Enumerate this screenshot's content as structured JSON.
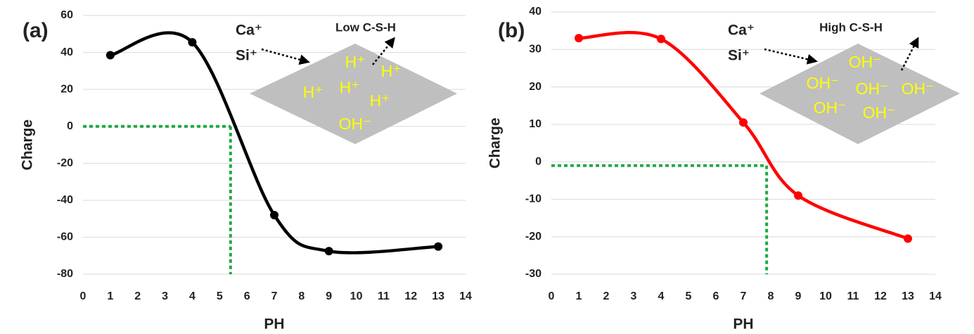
{
  "chart_data": [
    {
      "type": "line",
      "panel_label": "(a)",
      "xlabel": "PH",
      "ylabel": "Charge",
      "x": [
        1,
        4,
        7,
        9,
        13
      ],
      "values": [
        38.5,
        45.5,
        -48,
        -67.5,
        -65
      ],
      "color": "#000000",
      "xlim": [
        0,
        14
      ],
      "xticks": [
        0,
        1,
        2,
        3,
        4,
        5,
        6,
        7,
        8,
        9,
        10,
        11,
        12,
        13,
        14
      ],
      "ylim": [
        -80,
        60
      ],
      "yticks": [
        -80,
        -60,
        -40,
        -20,
        0,
        20,
        40,
        60
      ],
      "grid": true,
      "reference": {
        "x": 5.4,
        "y": 0,
        "color": "#1fa845"
      },
      "annotations": [
        "Ca⁺",
        "Si⁺",
        "Low C-S-H"
      ],
      "ions": [
        "H⁺",
        "H⁺",
        "H⁺",
        "H⁺",
        "H⁺",
        "OH⁻"
      ]
    },
    {
      "type": "line",
      "panel_label": "(b)",
      "xlabel": "PH",
      "ylabel": "Charge",
      "x": [
        1,
        4,
        7,
        9,
        13
      ],
      "values": [
        33,
        32.8,
        10.5,
        -9,
        -20.5
      ],
      "color": "#ff0000",
      "xlim": [
        0,
        14
      ],
      "xticks": [
        0,
        1,
        2,
        3,
        4,
        5,
        6,
        7,
        8,
        9,
        10,
        11,
        12,
        13,
        14
      ],
      "ylim": [
        -30,
        40
      ],
      "yticks": [
        -30,
        -20,
        -10,
        0,
        10,
        20,
        30,
        40
      ],
      "grid": true,
      "reference": {
        "x": 7.85,
        "y": -1,
        "color": "#1fa845"
      },
      "annotations": [
        "Ca⁺",
        "Si⁺",
        "High C-S-H"
      ],
      "ions": [
        "OH⁻",
        "OH⁻",
        "OH⁻",
        "OH⁻",
        "OH⁻",
        "OH⁻"
      ]
    }
  ]
}
